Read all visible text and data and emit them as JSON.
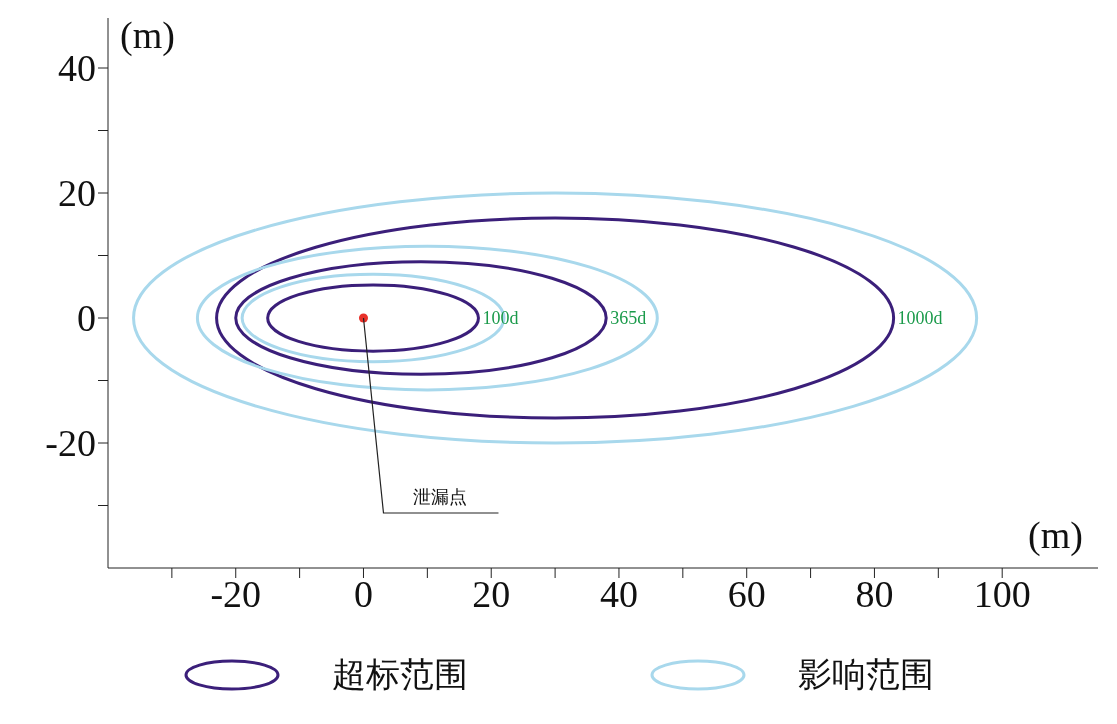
{
  "chart_data": {
    "type": "scatter",
    "xlabel": "(m)",
    "ylabel": "(m)",
    "xlim": [
      -40,
      115
    ],
    "ylim": [
      -40,
      48
    ],
    "xticks": [
      {
        "value": -30,
        "label": null
      },
      -20,
      {
        "value": -10,
        "label": null
      },
      0,
      {
        "value": 10,
        "label": null
      },
      20,
      {
        "value": 30,
        "label": null
      },
      40,
      {
        "value": 50,
        "label": null
      },
      60,
      {
        "value": 70,
        "label": null
      },
      80,
      {
        "value": 90,
        "label": null
      },
      100
    ],
    "yticks": [
      {
        "value": -30,
        "label": null
      },
      -20,
      {
        "value": -10,
        "label": null
      },
      0,
      {
        "value": 10,
        "label": null
      },
      20,
      {
        "value": 30,
        "label": null
      },
      40
    ],
    "grid": false,
    "marker": "circle",
    "series": [
      {
        "color": "#e8312a",
        "x": [
          0
        ],
        "values": [
          0
        ]
      }
    ],
    "annotations": [
      "100d",
      "365d",
      "1000d",
      {
        "text": "泄漏点",
        "x": 0,
        "y": 0
      },
      "超标范围",
      "影响范围"
    ]
  }
}
